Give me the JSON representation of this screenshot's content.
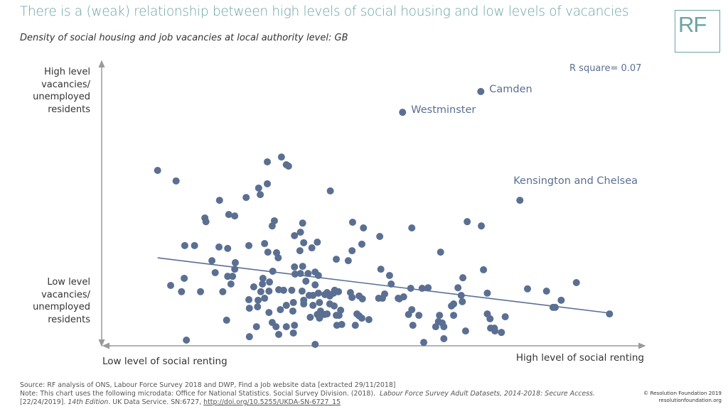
{
  "header": {
    "title": "There is a (weak) relationship between high levels of social housing and low levels of vacancies",
    "subtitle": "Density of social housing and job vacancies at local authority level: GB",
    "logo_text": "RF"
  },
  "colors": {
    "title": "#6aa3a4",
    "points": "#5a6f92",
    "axis": "#9a9a9a",
    "text": "#333333"
  },
  "chart_data": {
    "type": "scatter",
    "title": "Density of social housing and job vacancies at local authority level: GB",
    "xlabel_low": "Low level of social renting",
    "xlabel_high": "High level of social renting",
    "ylabel_high": [
      "High level",
      "vacancies/",
      "unemployed",
      "residents"
    ],
    "ylabel_low": [
      "Low level",
      "vacancies/",
      "unemployed",
      "residents"
    ],
    "units_note": "No numeric ticks shown; values are on a relative 0-100 index scale",
    "xlim": [
      0,
      100
    ],
    "ylim": [
      0,
      100
    ],
    "grid": false,
    "annotation": "R square= 0.07",
    "trendline": {
      "x": [
        10.3,
        93.5
      ],
      "y": [
        30.9,
        11.5
      ]
    },
    "labelled_points": [
      {
        "name": "Camden",
        "x": 69.8,
        "y": 89.3
      },
      {
        "name": "Westminster",
        "x": 55.4,
        "y": 82.0
      },
      {
        "name": "Kensington and Chelsea",
        "x": 77.0,
        "y": 51.1
      }
    ],
    "points": [
      [
        10.3,
        61.6
      ],
      [
        13.7,
        57.9
      ],
      [
        21.7,
        51.1
      ],
      [
        26.6,
        52.1
      ],
      [
        28.9,
        55.4
      ],
      [
        29.2,
        53.1
      ],
      [
        30.5,
        56.9
      ],
      [
        30.5,
        64.6
      ],
      [
        33.1,
        66.3
      ],
      [
        34.0,
        63.6
      ],
      [
        34.4,
        63.1
      ],
      [
        42.1,
        54.4
      ],
      [
        19.0,
        44.9
      ],
      [
        19.2,
        43.6
      ],
      [
        23.4,
        46.1
      ],
      [
        24.5,
        45.6
      ],
      [
        31.8,
        43.9
      ],
      [
        31.4,
        42.1
      ],
      [
        37.0,
        43.1
      ],
      [
        46.2,
        43.4
      ],
      [
        48.2,
        41.4
      ],
      [
        51.2,
        38.4
      ],
      [
        57.1,
        41.4
      ],
      [
        67.3,
        43.6
      ],
      [
        69.9,
        42.1
      ],
      [
        35.5,
        38.7
      ],
      [
        36.6,
        39.9
      ],
      [
        37.2,
        36.2
      ],
      [
        39.7,
        36.4
      ],
      [
        47.9,
        35.7
      ],
      [
        46.1,
        33.4
      ],
      [
        15.3,
        35.2
      ],
      [
        17.1,
        35.2
      ],
      [
        21.6,
        34.7
      ],
      [
        23.2,
        34.2
      ],
      [
        27.1,
        35.2
      ],
      [
        30.0,
        35.9
      ],
      [
        30.6,
        32.9
      ],
      [
        32.2,
        32.7
      ],
      [
        32.5,
        30.9
      ],
      [
        38.7,
        34.4
      ],
      [
        36.5,
        33.4
      ],
      [
        20.3,
        29.9
      ],
      [
        24.6,
        29.2
      ],
      [
        43.2,
        30.4
      ],
      [
        45.4,
        29.9
      ],
      [
        62.4,
        32.9
      ],
      [
        20.9,
        25.7
      ],
      [
        23.2,
        24.4
      ],
      [
        24.1,
        24.4
      ],
      [
        24.5,
        26.9
      ],
      [
        15.2,
        23.7
      ],
      [
        12.7,
        21.2
      ],
      [
        14.7,
        19.0
      ],
      [
        18.2,
        19.0
      ],
      [
        22.3,
        19.0
      ],
      [
        23.8,
        21.7
      ],
      [
        28.0,
        20.7
      ],
      [
        29.7,
        23.7
      ],
      [
        29.6,
        21.7
      ],
      [
        29.3,
        19.0
      ],
      [
        30.8,
        19.2
      ],
      [
        30.9,
        22.4
      ],
      [
        31.5,
        26.2
      ],
      [
        32.6,
        19.7
      ],
      [
        30.0,
        16.7
      ],
      [
        27.1,
        16.2
      ],
      [
        28.8,
        16.0
      ],
      [
        28.7,
        13.7
      ],
      [
        27.2,
        13.2
      ],
      [
        30.8,
        11.7
      ],
      [
        32.9,
        12.7
      ],
      [
        23.0,
        9.0
      ],
      [
        28.5,
        6.7
      ],
      [
        31.4,
        8.2
      ],
      [
        32.1,
        6.7
      ],
      [
        32.6,
        4.0
      ],
      [
        27.2,
        3.2
      ],
      [
        15.6,
        2.0
      ],
      [
        34.0,
        6.7
      ],
      [
        35.5,
        7.2
      ],
      [
        35.3,
        4.5
      ],
      [
        39.3,
        0.5
      ],
      [
        33.5,
        19.5
      ],
      [
        35.0,
        19.5
      ],
      [
        36.9,
        19.2
      ],
      [
        37.2,
        16.0
      ],
      [
        34.0,
        14.2
      ],
      [
        35.3,
        15.2
      ],
      [
        35.2,
        12.2
      ],
      [
        35.5,
        27.7
      ],
      [
        37.0,
        27.9
      ],
      [
        35.6,
        25.2
      ],
      [
        36.6,
        25.4
      ],
      [
        38.0,
        25.4
      ],
      [
        39.3,
        25.9
      ],
      [
        39.9,
        24.7
      ],
      [
        39.3,
        21.4
      ],
      [
        37.6,
        22.7
      ],
      [
        38.2,
        17.7
      ],
      [
        38.9,
        17.7
      ],
      [
        39.9,
        18.5
      ],
      [
        41.1,
        18.0
      ],
      [
        41.5,
        18.7
      ],
      [
        42.0,
        17.5
      ],
      [
        42.7,
        18.5
      ],
      [
        42.9,
        19.5
      ],
      [
        43.6,
        19.0
      ],
      [
        45.8,
        18.7
      ],
      [
        46.1,
        17.0
      ],
      [
        47.4,
        17.5
      ],
      [
        48.0,
        16.5
      ],
      [
        51.0,
        16.7
      ],
      [
        51.7,
        16.7
      ],
      [
        52.1,
        18.2
      ],
      [
        54.6,
        16.7
      ],
      [
        55.6,
        17.2
      ],
      [
        54.8,
        16.5
      ],
      [
        51.4,
        26.9
      ],
      [
        53.0,
        24.7
      ],
      [
        53.3,
        21.7
      ],
      [
        56.9,
        20.2
      ],
      [
        59.0,
        20.2
      ],
      [
        60.1,
        20.4
      ],
      [
        65.6,
        20.4
      ],
      [
        66.5,
        23.9
      ],
      [
        70.3,
        26.7
      ],
      [
        71.0,
        18.5
      ],
      [
        66.2,
        17.7
      ],
      [
        66.4,
        15.5
      ],
      [
        64.8,
        14.7
      ],
      [
        64.4,
        14.0
      ],
      [
        78.4,
        20.0
      ],
      [
        81.9,
        19.2
      ],
      [
        87.4,
        22.2
      ],
      [
        84.6,
        16.0
      ],
      [
        83.1,
        13.5
      ],
      [
        83.5,
        13.5
      ],
      [
        93.5,
        11.2
      ],
      [
        37.2,
        14.7
      ],
      [
        38.9,
        14.2
      ],
      [
        40.1,
        15.2
      ],
      [
        40.3,
        12.2
      ],
      [
        38.4,
        10.0
      ],
      [
        39.7,
        11.0
      ],
      [
        40.1,
        9.7
      ],
      [
        41.0,
        11.0
      ],
      [
        41.5,
        11.2
      ],
      [
        42.0,
        14.7
      ],
      [
        42.8,
        14.0
      ],
      [
        43.2,
        10.7
      ],
      [
        44.0,
        12.5
      ],
      [
        43.7,
        10.7
      ],
      [
        44.2,
        7.5
      ],
      [
        47.0,
        11.2
      ],
      [
        47.4,
        10.5
      ],
      [
        47.9,
        9.7
      ],
      [
        49.2,
        9.2
      ],
      [
        46.7,
        7.2
      ],
      [
        43.3,
        7.2
      ],
      [
        57.1,
        12.7
      ],
      [
        56.5,
        11.0
      ],
      [
        58.4,
        10.7
      ],
      [
        57.3,
        7.2
      ],
      [
        62.2,
        10.7
      ],
      [
        62.0,
        8.5
      ],
      [
        62.7,
        8.0
      ],
      [
        61.5,
        6.7
      ],
      [
        63.0,
        6.7
      ],
      [
        64.8,
        10.7
      ],
      [
        71.0,
        11.2
      ],
      [
        71.5,
        9.5
      ],
      [
        74.3,
        10.2
      ],
      [
        71.6,
        6.2
      ],
      [
        72.3,
        6.2
      ],
      [
        72.4,
        5.2
      ],
      [
        73.6,
        4.7
      ],
      [
        67.0,
        5.2
      ],
      [
        59.3,
        1.2
      ],
      [
        63.0,
        2.5
      ]
    ]
  },
  "footer": {
    "source": "Source: RF analysis of ONS, Labour Force Survey 2018 and DWP, Find a Job website data [extracted 29/11/2018]",
    "note_prefix": "Note: This chart uses the following microdata: Office for National Statistics. Social Survey Division. (2018).",
    "note_italic": "Labour Force Survey Adult Datasets, 2014-2018: Secure Access.",
    "note_line3_prefix": "[22/24/2019].",
    "note_edition": "14th Edition",
    "note_line3_suffix": ". UK Data Service. SN:6727,",
    "doi_link": "http://doi.org/10.5255/UKDA-SN-6727_15",
    "copyright": "© Resolution Foundation 2019",
    "website": "resolutionfoundation.org"
  }
}
